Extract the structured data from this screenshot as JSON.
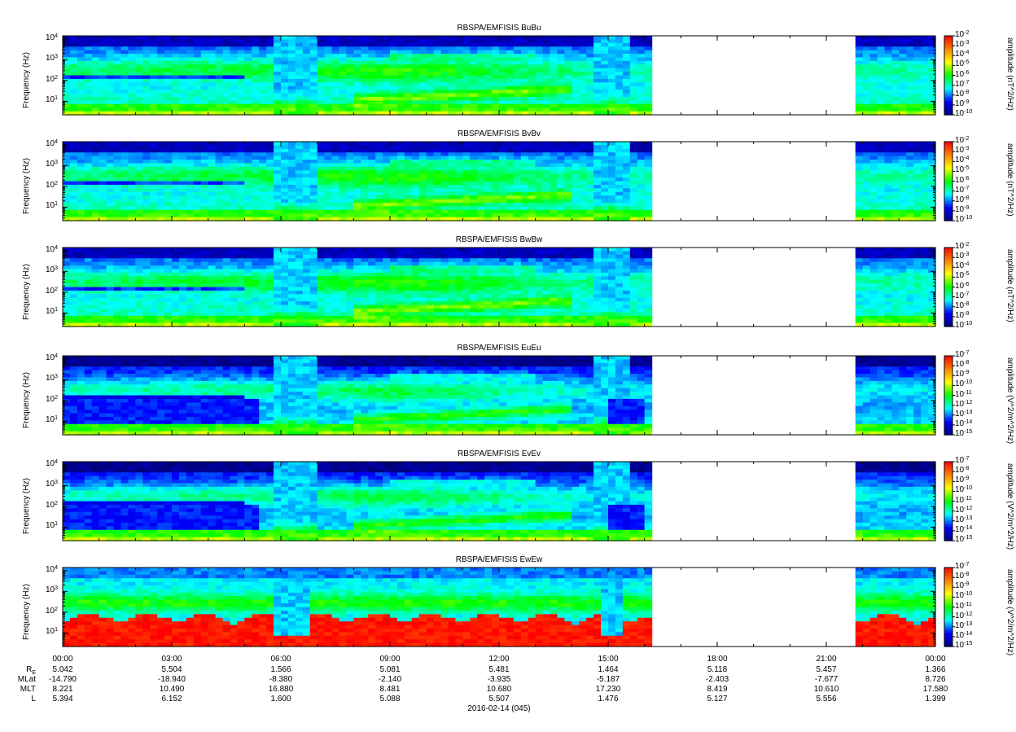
{
  "chart_data": {
    "type": "heatmap",
    "panels": [
      {
        "title": "RBSPA/EMFISIS  BuBu",
        "ylabel": "Frequency (Hz)",
        "cblabel": "amplitude (nT^2/Hz)",
        "cbrange_exp": [
          -10,
          -2
        ],
        "kind": "B"
      },
      {
        "title": "RBSPA/EMFISIS  BvBv",
        "ylabel": "Frequency (Hz)",
        "cblabel": "amplitude (nT^2/Hz)",
        "cbrange_exp": [
          -10,
          -2
        ],
        "kind": "B"
      },
      {
        "title": "RBSPA/EMFISIS  BwBw",
        "ylabel": "Frequency (Hz)",
        "cblabel": "amplitude (nT^2/Hz)",
        "cbrange_exp": [
          -10,
          -2
        ],
        "kind": "B"
      },
      {
        "title": "RBSPA/EMFISIS  EuEu",
        "ylabel": "Frequency (Hz)",
        "cblabel": "amplitude (V^2/m^2/Hz)",
        "cbrange_exp": [
          -15,
          -7
        ],
        "kind": "E"
      },
      {
        "title": "RBSPA/EMFISIS  EvEv",
        "ylabel": "Frequency (Hz)",
        "cblabel": "amplitude (V^2/m^2/Hz)",
        "cbrange_exp": [
          -15,
          -7
        ],
        "kind": "E"
      },
      {
        "title": "RBSPA/EMFISIS  EwEw",
        "ylabel": "Frequency (Hz)",
        "cblabel": "amplitude (V^2/m^2/Hz)",
        "cbrange_exp": [
          -15,
          -7
        ],
        "kind": "Ew"
      }
    ],
    "yticks_exp": [
      1,
      2,
      3,
      4
    ],
    "y_unit_base": "10",
    "x_tick_labels": [
      "00:00",
      "03:00",
      "06:00",
      "09:00",
      "12:00",
      "15:00",
      "18:00",
      "21:00",
      "00:00"
    ],
    "x_range_hours": [
      0,
      24
    ],
    "data_gaps_hours": [
      [
        16.1,
        21.9
      ]
    ],
    "ephemeris": {
      "labels": [
        "RE",
        "MLat",
        "MLT",
        "L"
      ],
      "rows": [
        [
          "5.042",
          "5.504",
          "1.566",
          "5.081",
          "5.481",
          "1.464",
          "5.118",
          "5.457",
          "1.366"
        ],
        [
          "-14.790",
          "-18.940",
          "-8.380",
          "-2.140",
          "-3.935",
          "-5.187",
          "-2.403",
          "-7.677",
          "8.726"
        ],
        [
          "8.221",
          "10.490",
          "16.880",
          "8.481",
          "10.680",
          "17.230",
          "8.419",
          "10.610",
          "17.580"
        ],
        [
          "5.394",
          "6.152",
          "1.600",
          "5.088",
          "5.507",
          "1.476",
          "5.127",
          "5.556",
          "1.399"
        ]
      ]
    },
    "date_label": "2016-02-14 (045)",
    "colormap": [
      "#000080",
      "#0000ff",
      "#00ffff",
      "#00ff00",
      "#ffff00",
      "#ff8000",
      "#ff0000"
    ]
  }
}
